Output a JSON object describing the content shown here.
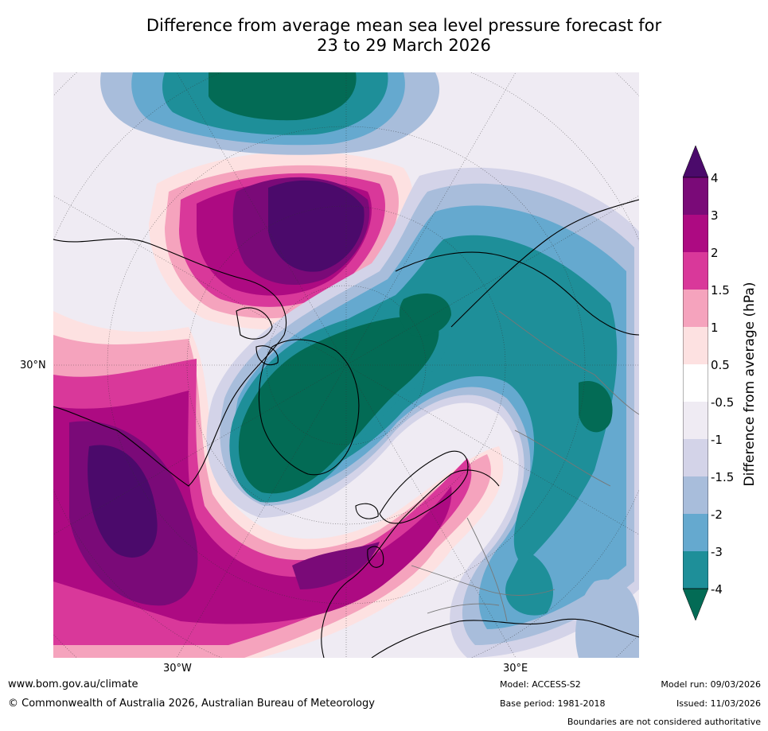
{
  "title": {
    "line1": "Difference from average mean sea level pressure forecast for",
    "line2": "23 to 29 March 2026"
  },
  "map": {
    "projection": "polar stereographic (North Pole)",
    "lat_label": "30°N",
    "lon_labels": [
      "30°W",
      "30°E"
    ]
  },
  "colorbar": {
    "title": "Difference from average (hPa)",
    "ticks": [
      "4",
      "3",
      "2",
      "1.5",
      "1",
      "0.5",
      "-0.5",
      "-1",
      "-1.5",
      "-2",
      "-3",
      "-4"
    ],
    "colors": {
      "gt_4": "#4b0a6b",
      "c_3_4": "#7a0a78",
      "c_2_3": "#ad0a82",
      "c_15_2": "#d9389a",
      "c_1_15": "#f5a3bd",
      "c_05_1": "#fde1e1",
      "c_neutral": "#ffffff",
      "c_m05_m1": "#efebf3",
      "c_m1_m15": "#d3d3e8",
      "c_m15_m2": "#a8bddb",
      "c_m2_m3": "#65a9cf",
      "c_m3_m4": "#1e8f99",
      "lt_m4": "#036b55"
    }
  },
  "footer": {
    "website": "www.bom.gov.au/climate",
    "copyright": "© Commonwealth of Australia 2026, Australian Bureau of Meteorology",
    "model": "Model: ACCESS-S2",
    "base_period": "Base period: 1981-2018",
    "model_run": "Model run: 09/03/2026",
    "issued": "Issued: 11/03/2026",
    "disclaimer": "Boundaries are not considered authoritative"
  }
}
